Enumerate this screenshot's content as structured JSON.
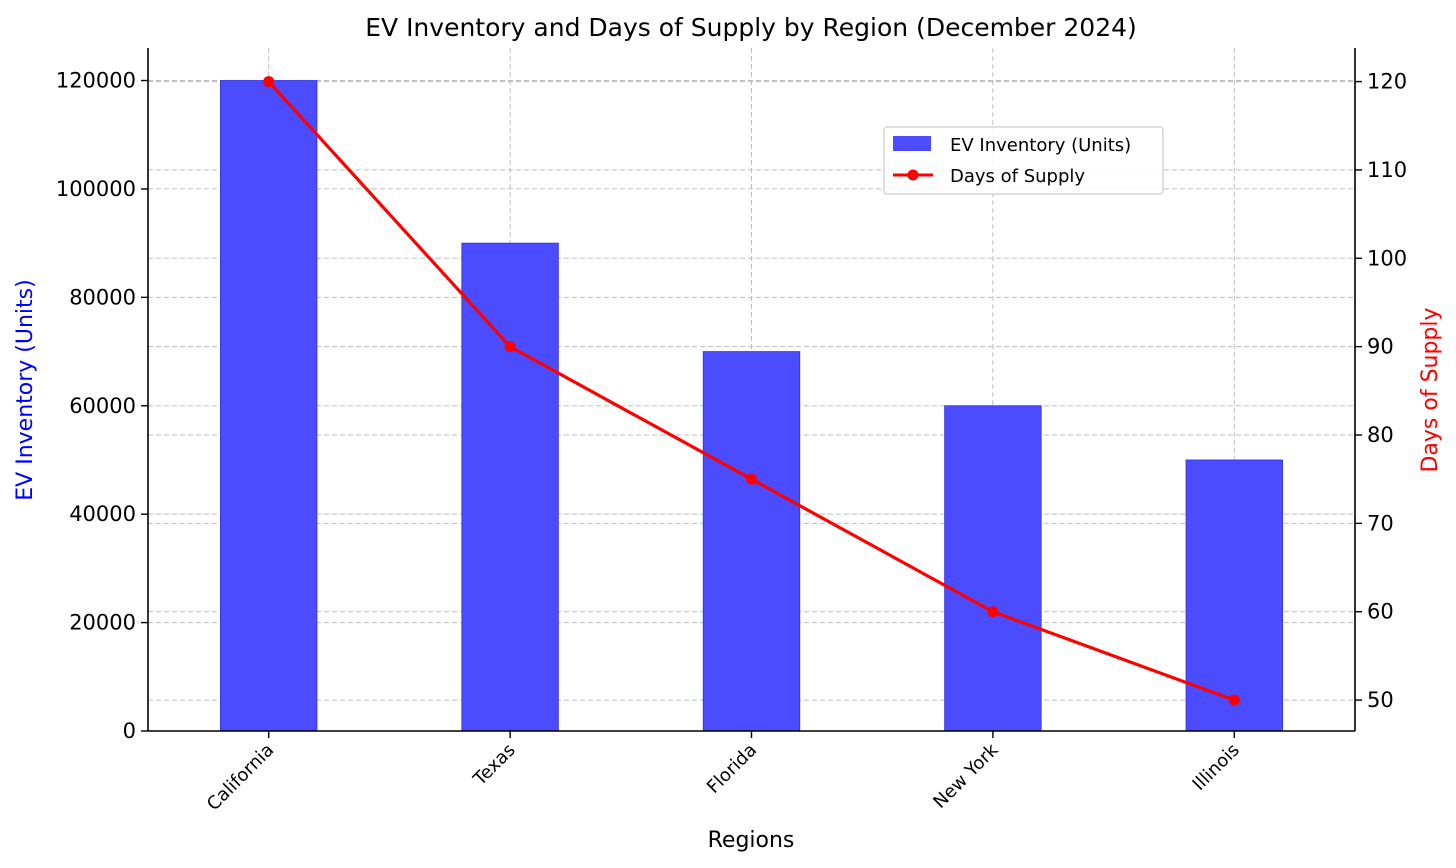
{
  "chart_data": {
    "type": "bar",
    "title": "EV Inventory and Days of Supply by Region (December 2024)",
    "xlabel": "Regions",
    "ylabel": "EV Inventory (Units)",
    "y2label": "Days of Supply",
    "categories": [
      "California",
      "Texas",
      "Florida",
      "New York",
      "Illinois"
    ],
    "series": [
      {
        "name": "EV Inventory (Units)",
        "type": "bar",
        "axis": "left",
        "color": "#4b4bff",
        "values": [
          120000,
          90000,
          70000,
          60000,
          50000
        ]
      },
      {
        "name": "Days of Supply",
        "type": "line",
        "axis": "right",
        "color": "#ff0000",
        "values": [
          120,
          90,
          75,
          60,
          50
        ]
      }
    ],
    "ylim": [
      0,
      126000
    ],
    "y2lim": [
      46.5,
      123.8
    ],
    "yticks": [
      0,
      20000,
      40000,
      60000,
      80000,
      100000,
      120000
    ],
    "y2ticks": [
      50,
      60,
      70,
      80,
      90,
      100,
      110,
      120
    ],
    "ylabel_color": "#0000ff",
    "y2label_color": "#ff0000",
    "grid": true,
    "legend_position": "upper-right-inset"
  }
}
